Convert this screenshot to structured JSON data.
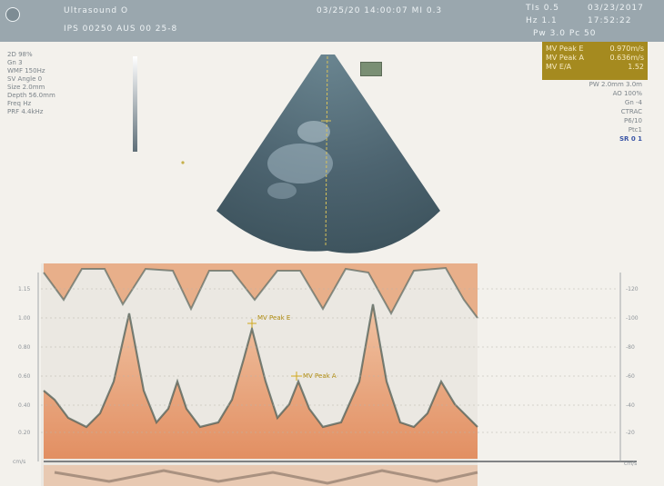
{
  "header": {
    "line1_left": "Ultrasound O",
    "line1_mid": "03/25/20 14:00:07 MI 0.3",
    "line1_right_a": "TIs 0.5",
    "line1_right_b": "03/23/2017",
    "line2_left": "IPS 00250 AUS 00 25-8",
    "line2_right_a": "Hz 1.1",
    "line2_right_b": "17:52:22",
    "line3_right": "Pw 3.0  Pc 50"
  },
  "measurements": [
    {
      "label": "MV Peak E",
      "value": "0.970m/s"
    },
    {
      "label": "MV Peak A",
      "value": "0.636m/s"
    },
    {
      "label": "MV E/A",
      "value": "1.52"
    }
  ],
  "left_params": [
    "2D 98%",
    "Gn  3",
    "WMF 150Hz",
    "SV Angle  0",
    "Size 2.0mm",
    "Depth 56.0mm",
    "Freq Hz",
    "PRF 4.4kHz"
  ],
  "right_params": [
    "PW 2.0mm 3.0m",
    "AO 100%",
    "Gn -4",
    "CTRAC",
    "P6/10",
    "Ptc1"
  ],
  "right_params_accent": "SR 0 1",
  "doppler_annotations": {
    "peak_e": "MV Peak E",
    "peak_a": "MV Peak A"
  },
  "left_scale_labels": [
    "1.15",
    "1.00",
    "0.80",
    "0.60",
    "0.40",
    "0.20",
    "cm/s"
  ],
  "right_scale_labels": [
    "-120",
    "-100",
    "-80",
    "-60",
    "-40",
    "-20",
    "cm/s"
  ],
  "colors": {
    "header": "#9aa7ae",
    "measurement_box": "#a58a1f",
    "doppler_orange": "#e8a47a",
    "sector_dark": "#4d6470"
  }
}
